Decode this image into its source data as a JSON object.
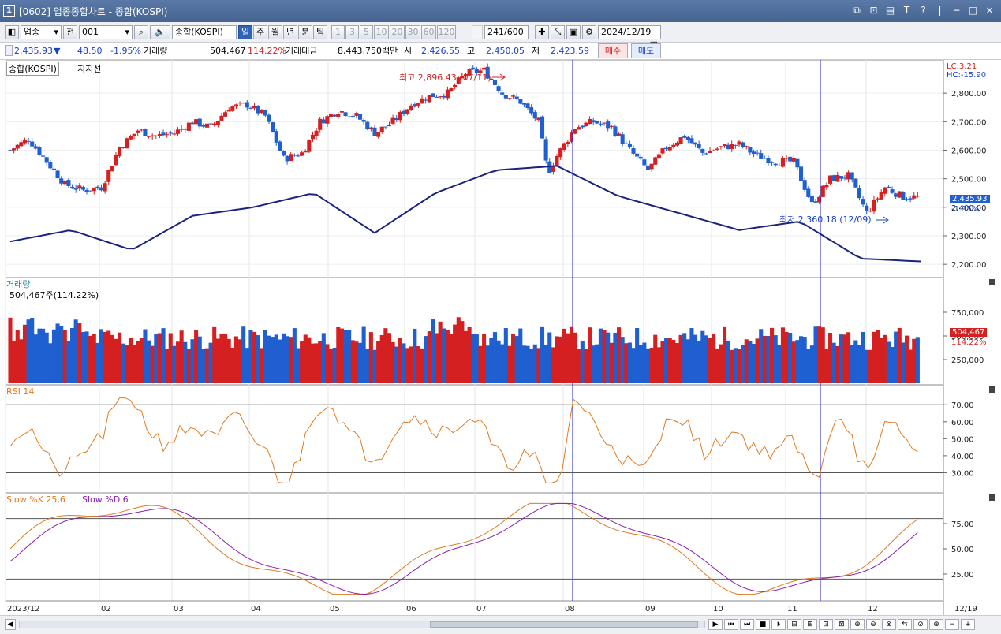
{
  "window": {
    "num": "1",
    "title": "[0602] 업종종합차트 - 종합(KOSPI)",
    "buttons": [
      "⧉",
      "⊡",
      "▤",
      "T",
      "?",
      "|",
      "−",
      "□",
      "×"
    ]
  },
  "toolbar": {
    "sector_select": "업종",
    "prev_label": "전",
    "code": "001",
    "name": "종합(KOSPI)",
    "periods": [
      "일",
      "주",
      "월",
      "년",
      "분",
      "틱"
    ],
    "selected_period": "일",
    "minutes": [
      "1",
      "3",
      "5",
      "10",
      "20",
      "30",
      "60",
      "120"
    ],
    "count": "241",
    "count_total": "/600",
    "date": "2024/12/19"
  },
  "info": {
    "price": "2,435.93",
    "arrow": "▼",
    "change": "48.50",
    "change_pct": "-1.95%",
    "volume_label": "거래량",
    "volume": "504,467",
    "volume_pct": "114.22%",
    "amount_label": "거래대금",
    "amount": "8,443,750백만",
    "open_label": "시",
    "open": "2,426.55",
    "high_label": "고",
    "high": "2,450.05",
    "low_label": "저",
    "low": "2,423.59",
    "buy": "매수",
    "sell": "매도"
  },
  "panels": {
    "price_title": "종합(KOSPI)",
    "price_sub": "지지선",
    "lc": "LC:3.21",
    "hc": "HC:-15.90",
    "high_note": "최고 2,896.43 (07/11)",
    "low_note": "최저 2,360.18 (12/09)",
    "last_price": "2,435.93",
    "last_pct": "-1.95%",
    "volume_title": "거래량",
    "volume_sub": "504,467주(114.22%)",
    "volume_last": "504,467",
    "volume_last_pct": "114.22%",
    "rsi_title": "RSI 14",
    "stoch_k_title": "Slow %K 25,6",
    "stoch_d_title": "Slow %D 6"
  },
  "axes": {
    "price_ticks": [
      "2,800.00",
      "2,700.00",
      "2,600.00",
      "2,500.00",
      "2,400.00",
      "2,300.00",
      "2,200.00"
    ],
    "volume_ticks": [
      "750,000",
      "500,000",
      "250,000"
    ],
    "rsi_ticks": [
      "70.00",
      "60.00",
      "50.00",
      "40.00",
      "30.00"
    ],
    "stoch_ticks": [
      "75.00",
      "50.00",
      "25.00"
    ],
    "x_ticks": [
      "2023/12",
      "02",
      "03",
      "04",
      "05",
      "06",
      "07",
      "08",
      "09",
      "10",
      "11",
      "12",
      "12/19"
    ]
  },
  "colors": {
    "up": "#d42020",
    "down": "#1f5fd0",
    "support": "#1a237e",
    "rsi": "#e07a20",
    "stoch_k": "#e07a20",
    "stoch_d": "#8a1fb0",
    "marker": "#2020c0"
  },
  "chart_data": {
    "type": "candlestick",
    "series_note": "KOSPI daily, Dec 2023 – Dec 19 2024",
    "ohlc_close_key": [
      [
        0,
        2600
      ],
      [
        10,
        2640
      ],
      [
        20,
        2560
      ],
      [
        30,
        2480
      ],
      [
        40,
        2460
      ],
      [
        50,
        2470
      ],
      [
        60,
        2610
      ],
      [
        70,
        2670
      ],
      [
        80,
        2650
      ],
      [
        90,
        2660
      ],
      [
        100,
        2700
      ],
      [
        110,
        2680
      ],
      [
        120,
        2750
      ],
      [
        130,
        2760
      ],
      [
        140,
        2720
      ],
      [
        150,
        2570
      ],
      [
        160,
        2590
      ],
      [
        170,
        2700
      ],
      [
        180,
        2740
      ],
      [
        190,
        2720
      ],
      [
        200,
        2660
      ],
      [
        210,
        2700
      ],
      [
        220,
        2760
      ],
      [
        230,
        2790
      ],
      [
        240,
        2800
      ],
      [
        250,
        2870
      ],
      [
        260,
        2880
      ],
      [
        270,
        2800
      ],
      [
        280,
        2770
      ],
      [
        290,
        2700
      ],
      [
        295,
        2520
      ],
      [
        300,
        2580
      ],
      [
        310,
        2680
      ],
      [
        320,
        2700
      ],
      [
        330,
        2680
      ],
      [
        340,
        2600
      ],
      [
        350,
        2530
      ],
      [
        360,
        2610
      ],
      [
        370,
        2650
      ],
      [
        380,
        2590
      ],
      [
        390,
        2610
      ],
      [
        400,
        2620
      ],
      [
        410,
        2580
      ],
      [
        420,
        2560
      ],
      [
        430,
        2560
      ],
      [
        440,
        2410
      ],
      [
        450,
        2500
      ],
      [
        460,
        2510
      ],
      [
        470,
        2380
      ],
      [
        480,
        2470
      ],
      [
        490,
        2436
      ]
    ],
    "support_line": [
      2280,
      2320,
      2250,
      2370,
      2400,
      2450,
      2310,
      2450,
      2530,
      2545,
      2440,
      2380,
      2320,
      2350,
      2220,
      2210
    ],
    "highest": {
      "label": "최고 2,896.43 (07/11)",
      "value": 2896.43
    },
    "lowest": {
      "label": "최저 2,360.18 (12/09)",
      "value": 2360.18
    },
    "last": 2435.93,
    "y_range": [
      2170,
      2900
    ],
    "volume_range": [
      0,
      1000000
    ],
    "rsi_levels": [
      70,
      30
    ],
    "stoch_levels": [
      80,
      20
    ]
  }
}
